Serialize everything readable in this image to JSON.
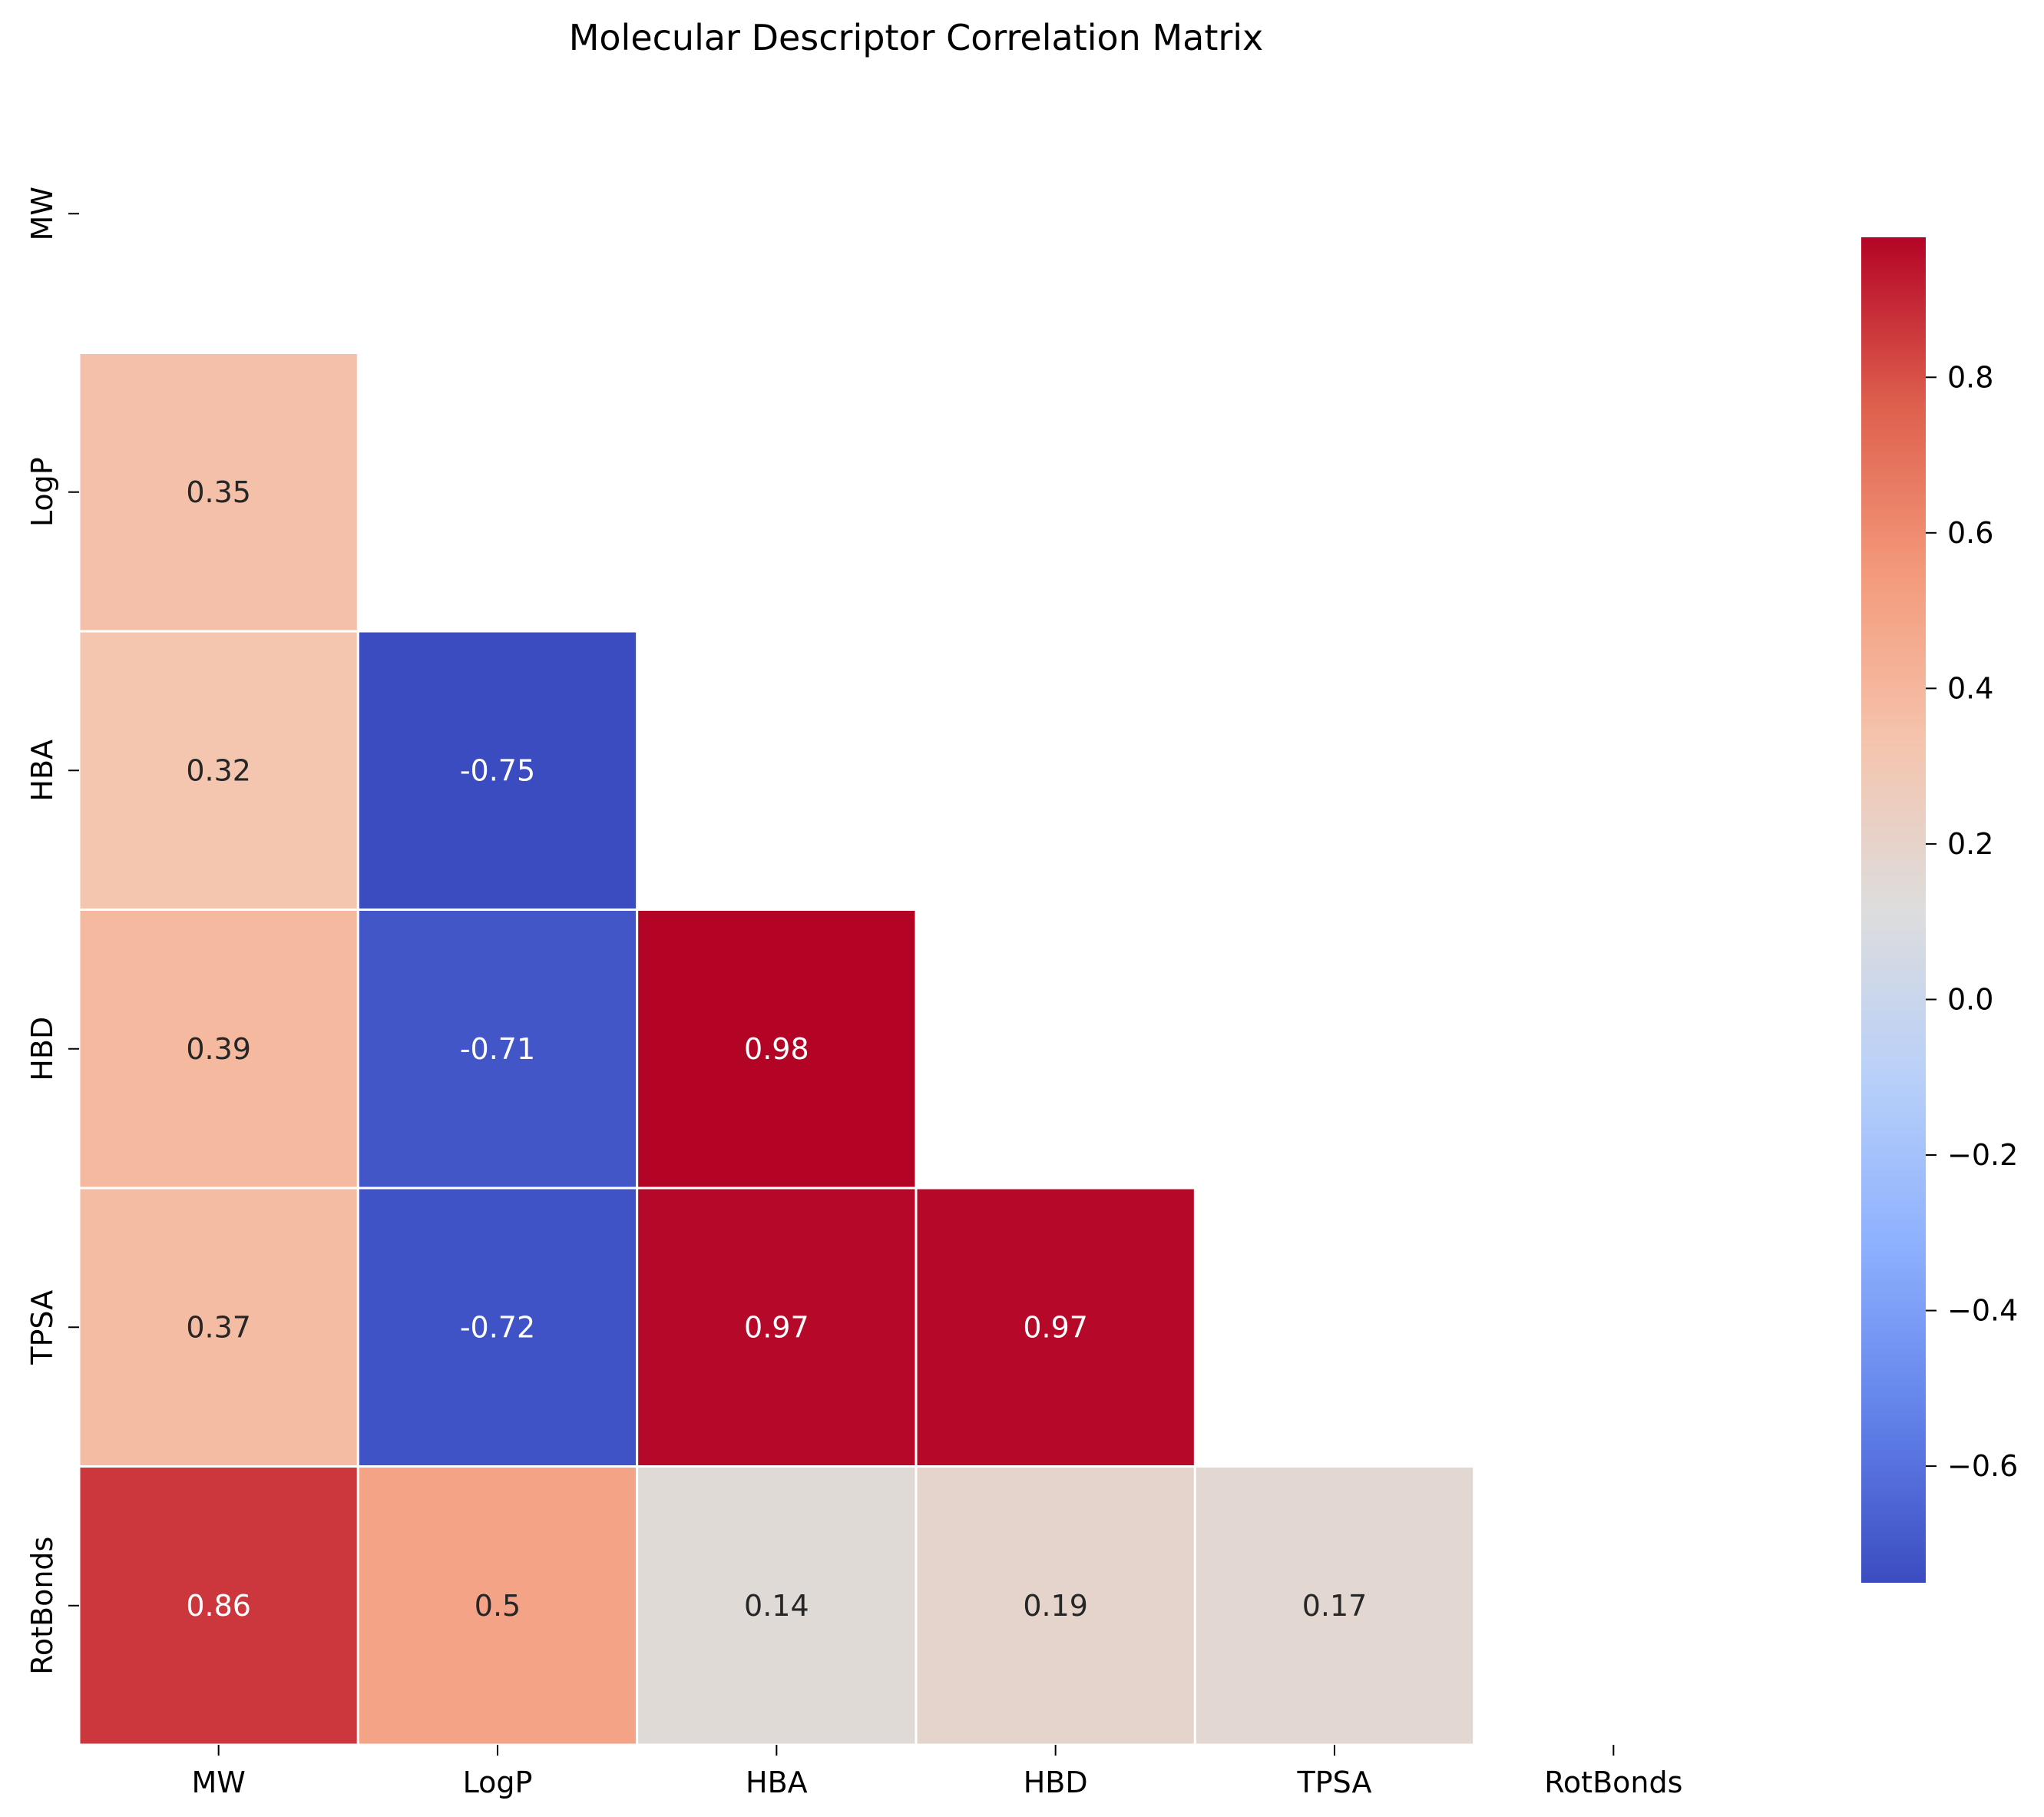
{
  "chart_data": {
    "type": "heatmap",
    "title": "Molecular Descriptor Correlation Matrix",
    "row_labels": [
      "MW",
      "LogP",
      "HBA",
      "HBD",
      "TPSA",
      "RotBonds"
    ],
    "column_labels": [
      "MW",
      "LogP",
      "HBA",
      "HBD",
      "TPSA",
      "RotBonds"
    ],
    "mask": "upper triangle including diagonal hidden",
    "cells": [
      {
        "row": "LogP",
        "col": "MW",
        "value": 0.35,
        "label": "0.35"
      },
      {
        "row": "HBA",
        "col": "MW",
        "value": 0.32,
        "label": "0.32"
      },
      {
        "row": "HBA",
        "col": "LogP",
        "value": -0.75,
        "label": "-0.75"
      },
      {
        "row": "HBD",
        "col": "MW",
        "value": 0.39,
        "label": "0.39"
      },
      {
        "row": "HBD",
        "col": "LogP",
        "value": -0.71,
        "label": "-0.71"
      },
      {
        "row": "HBD",
        "col": "HBA",
        "value": 0.98,
        "label": "0.98"
      },
      {
        "row": "TPSA",
        "col": "MW",
        "value": 0.37,
        "label": "0.37"
      },
      {
        "row": "TPSA",
        "col": "LogP",
        "value": -0.72,
        "label": "-0.72"
      },
      {
        "row": "TPSA",
        "col": "HBA",
        "value": 0.97,
        "label": "0.97"
      },
      {
        "row": "TPSA",
        "col": "HBD",
        "value": 0.97,
        "label": "0.97"
      },
      {
        "row": "RotBonds",
        "col": "MW",
        "value": 0.86,
        "label": "0.86"
      },
      {
        "row": "RotBonds",
        "col": "LogP",
        "value": 0.5,
        "label": "0.5"
      },
      {
        "row": "RotBonds",
        "col": "HBA",
        "value": 0.14,
        "label": "0.14"
      },
      {
        "row": "RotBonds",
        "col": "HBD",
        "value": 0.19,
        "label": "0.19"
      },
      {
        "row": "RotBonds",
        "col": "TPSA",
        "value": 0.17,
        "label": "0.17"
      }
    ],
    "colorbar": {
      "colormap": "coolwarm",
      "range": [
        -0.75,
        0.98
      ],
      "ticks": [
        -0.6,
        -0.4,
        -0.2,
        0.0,
        0.2,
        0.4,
        0.6,
        0.8
      ],
      "tick_labels": [
        "−0.6",
        "−0.4",
        "−0.2",
        "0.0",
        "0.2",
        "0.4",
        "0.6",
        "0.8"
      ]
    },
    "cell_border_color": "#ffffff",
    "grid": false
  }
}
